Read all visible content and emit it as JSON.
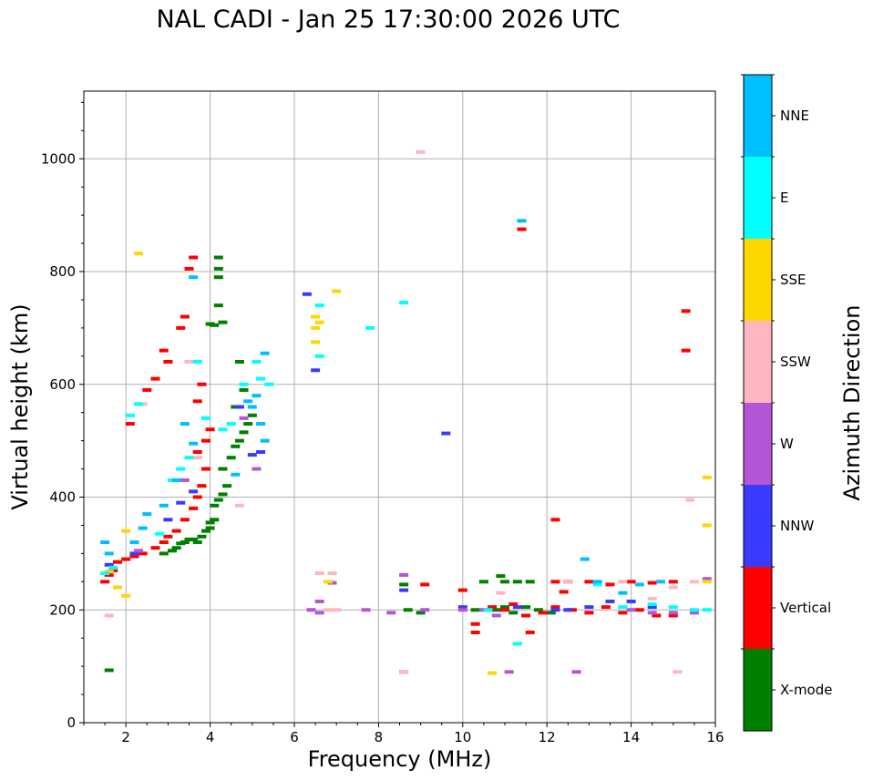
{
  "chart_data": {
    "type": "scatter",
    "title": "NAL CADI - Jan 25 17:30:00 2026 UTC",
    "xlabel": "Frequency (MHz)",
    "ylabel": "Virtual height (km)",
    "xlim": [
      1,
      16
    ],
    "ylim": [
      0,
      1120
    ],
    "xticks": [
      2,
      4,
      6,
      8,
      10,
      12,
      14,
      16
    ],
    "yticks": [
      0,
      200,
      400,
      600,
      800,
      1000
    ],
    "grid": true,
    "colorbar": {
      "label": "Azimuth Direction",
      "categories": [
        "X-mode",
        "Vertical",
        "NNW",
        "W",
        "SSW",
        "SSE",
        "E",
        "NNE"
      ],
      "colors": [
        "#008000",
        "#ff0000",
        "#3a3aff",
        "#b455d6",
        "#ffb6c1",
        "#ffd700",
        "#00ffff",
        "#00bfff"
      ]
    },
    "series": [
      {
        "name": "X-mode",
        "points": [
          [
            1.6,
            93
          ],
          [
            2.9,
            300
          ],
          [
            3.1,
            305
          ],
          [
            3.2,
            310
          ],
          [
            3.3,
            318
          ],
          [
            3.4,
            320
          ],
          [
            3.5,
            325
          ],
          [
            3.6,
            325
          ],
          [
            3.7,
            320
          ],
          [
            3.8,
            330
          ],
          [
            3.9,
            340
          ],
          [
            4.0,
            345
          ],
          [
            4.0,
            355
          ],
          [
            4.1,
            360
          ],
          [
            4.1,
            385
          ],
          [
            4.2,
            395
          ],
          [
            4.3,
            405
          ],
          [
            4.4,
            420
          ],
          [
            4.3,
            450
          ],
          [
            4.5,
            470
          ],
          [
            4.6,
            490
          ],
          [
            4.7,
            500
          ],
          [
            4.8,
            515
          ],
          [
            4.9,
            530
          ],
          [
            5.0,
            545
          ],
          [
            4.6,
            560
          ],
          [
            4.8,
            590
          ],
          [
            4.7,
            640
          ],
          [
            4.3,
            710
          ],
          [
            4.2,
            740
          ],
          [
            4.2,
            790
          ],
          [
            4.2,
            805
          ],
          [
            4.2,
            825
          ],
          [
            4.0,
            707
          ],
          [
            4.1,
            705
          ],
          [
            8.7,
            200
          ],
          [
            9.0,
            195
          ],
          [
            10.3,
            200
          ],
          [
            10.6,
            200
          ],
          [
            10.8,
            200
          ],
          [
            11.0,
            205
          ],
          [
            11.2,
            195
          ],
          [
            11.5,
            205
          ],
          [
            11.8,
            200
          ],
          [
            12.1,
            195
          ],
          [
            10.5,
            250
          ],
          [
            11.0,
            250
          ],
          [
            11.3,
            250
          ],
          [
            11.6,
            250
          ],
          [
            10.9,
            260
          ],
          [
            8.6,
            245
          ]
        ]
      },
      {
        "name": "Vertical",
        "points": [
          [
            1.5,
            250
          ],
          [
            1.6,
            262
          ],
          [
            1.7,
            270
          ],
          [
            1.8,
            285
          ],
          [
            2.0,
            290
          ],
          [
            2.2,
            295
          ],
          [
            2.4,
            300
          ],
          [
            2.7,
            310
          ],
          [
            2.9,
            320
          ],
          [
            3.0,
            330
          ],
          [
            3.2,
            340
          ],
          [
            3.4,
            360
          ],
          [
            3.6,
            380
          ],
          [
            3.7,
            400
          ],
          [
            3.8,
            420
          ],
          [
            3.9,
            450
          ],
          [
            3.7,
            480
          ],
          [
            3.9,
            500
          ],
          [
            4.0,
            520
          ],
          [
            3.7,
            570
          ],
          [
            3.8,
            600
          ],
          [
            3.3,
            700
          ],
          [
            3.4,
            720
          ],
          [
            3.0,
            640
          ],
          [
            2.9,
            660
          ],
          [
            2.7,
            610
          ],
          [
            2.5,
            590
          ],
          [
            2.1,
            530
          ],
          [
            3.5,
            805
          ],
          [
            3.6,
            825
          ],
          [
            9.1,
            245
          ],
          [
            10.0,
            235
          ],
          [
            10.3,
            175
          ],
          [
            10.3,
            160
          ],
          [
            10.7,
            205
          ],
          [
            11.0,
            200
          ],
          [
            11.2,
            210
          ],
          [
            11.5,
            190
          ],
          [
            11.4,
            875
          ],
          [
            11.6,
            160
          ],
          [
            11.9,
            195
          ],
          [
            12.2,
            360
          ],
          [
            12.2,
            250
          ],
          [
            12.5,
            250
          ],
          [
            13.0,
            250
          ],
          [
            13.5,
            245
          ],
          [
            14.0,
            250
          ],
          [
            14.5,
            248
          ],
          [
            15.0,
            250
          ],
          [
            12.2,
            205
          ],
          [
            12.6,
            200
          ],
          [
            13.0,
            195
          ],
          [
            13.4,
            205
          ],
          [
            13.8,
            195
          ],
          [
            14.2,
            200
          ],
          [
            14.6,
            190
          ],
          [
            15.0,
            190
          ],
          [
            12.4,
            232
          ],
          [
            15.3,
            730
          ],
          [
            15.3,
            660
          ]
        ]
      },
      {
        "name": "NNW",
        "points": [
          [
            1.6,
            280
          ],
          [
            2.2,
            300
          ],
          [
            3.0,
            360
          ],
          [
            3.3,
            390
          ],
          [
            3.6,
            410
          ],
          [
            4.7,
            560
          ],
          [
            5.0,
            475
          ],
          [
            5.2,
            480
          ],
          [
            6.3,
            760
          ],
          [
            6.5,
            625
          ],
          [
            8.6,
            235
          ],
          [
            9.6,
            513
          ],
          [
            10.0,
            205
          ],
          [
            11.3,
            205
          ],
          [
            12.5,
            200
          ],
          [
            13.0,
            205
          ],
          [
            13.5,
            215
          ],
          [
            14.0,
            215
          ],
          [
            14.5,
            205
          ],
          [
            12.2,
            200
          ]
        ]
      },
      {
        "name": "W",
        "points": [
          [
            2.3,
            305
          ],
          [
            3.4,
            430
          ],
          [
            4.8,
            540
          ],
          [
            5.1,
            450
          ],
          [
            6.4,
            200
          ],
          [
            6.6,
            195
          ],
          [
            6.6,
            215
          ],
          [
            6.9,
            248
          ],
          [
            7.7,
            200
          ],
          [
            8.3,
            195
          ],
          [
            8.6,
            262
          ],
          [
            8.6,
            90
          ],
          [
            9.1,
            200
          ],
          [
            10.0,
            200
          ],
          [
            10.5,
            200
          ],
          [
            10.8,
            190
          ],
          [
            11.1,
            90
          ],
          [
            12.7,
            90
          ],
          [
            14.0,
            200
          ],
          [
            14.5,
            195
          ],
          [
            15.0,
            195
          ],
          [
            15.5,
            195
          ],
          [
            15.8,
            255
          ]
        ]
      },
      {
        "name": "SSW",
        "points": [
          [
            1.6,
            190
          ],
          [
            2.4,
            565
          ],
          [
            3.5,
            640
          ],
          [
            3.7,
            470
          ],
          [
            4.7,
            385
          ],
          [
            6.6,
            265
          ],
          [
            6.9,
            265
          ],
          [
            6.8,
            200
          ],
          [
            7.0,
            200
          ],
          [
            8.6,
            90
          ],
          [
            9.0,
            1012
          ],
          [
            10.9,
            230
          ],
          [
            12.5,
            250
          ],
          [
            13.8,
            250
          ],
          [
            14.5,
            220
          ],
          [
            15.0,
            240
          ],
          [
            15.1,
            90
          ],
          [
            15.4,
            395
          ],
          [
            15.5,
            250
          ]
        ]
      },
      {
        "name": "SSE",
        "points": [
          [
            1.6,
            268
          ],
          [
            1.8,
            240
          ],
          [
            2.0,
            225
          ],
          [
            2.0,
            340
          ],
          [
            2.3,
            832
          ],
          [
            6.5,
            700
          ],
          [
            6.5,
            720
          ],
          [
            6.6,
            710
          ],
          [
            6.5,
            675
          ],
          [
            6.8,
            250
          ],
          [
            7.0,
            765
          ],
          [
            10.7,
            88
          ],
          [
            15.8,
            350
          ],
          [
            15.8,
            435
          ],
          [
            15.8,
            250
          ]
        ]
      },
      {
        "name": "E",
        "points": [
          [
            1.5,
            265
          ],
          [
            1.7,
            275
          ],
          [
            2.1,
            545
          ],
          [
            2.3,
            565
          ],
          [
            2.8,
            335
          ],
          [
            3.1,
            430
          ],
          [
            3.3,
            450
          ],
          [
            3.5,
            470
          ],
          [
            3.7,
            640
          ],
          [
            3.9,
            540
          ],
          [
            4.3,
            520
          ],
          [
            4.5,
            530
          ],
          [
            4.8,
            600
          ],
          [
            5.1,
            640
          ],
          [
            5.2,
            610
          ],
          [
            5.4,
            600
          ],
          [
            6.6,
            650
          ],
          [
            6.6,
            740
          ],
          [
            7.8,
            700
          ],
          [
            8.6,
            745
          ],
          [
            10.6,
            200
          ],
          [
            11.3,
            140
          ],
          [
            13.2,
            245
          ],
          [
            13.8,
            205
          ],
          [
            14.5,
            210
          ],
          [
            15.0,
            205
          ],
          [
            15.5,
            200
          ],
          [
            15.8,
            200
          ]
        ]
      },
      {
        "name": "NNE",
        "points": [
          [
            1.5,
            320
          ],
          [
            1.6,
            300
          ],
          [
            2.2,
            320
          ],
          [
            2.4,
            345
          ],
          [
            2.5,
            370
          ],
          [
            2.9,
            385
          ],
          [
            3.2,
            430
          ],
          [
            3.6,
            495
          ],
          [
            3.4,
            530
          ],
          [
            3.6,
            790
          ],
          [
            4.6,
            440
          ],
          [
            4.9,
            570
          ],
          [
            5.0,
            560
          ],
          [
            5.1,
            580
          ],
          [
            5.2,
            530
          ],
          [
            5.3,
            500
          ],
          [
            5.3,
            655
          ],
          [
            11.4,
            890
          ],
          [
            12.9,
            290
          ],
          [
            13.2,
            250
          ],
          [
            13.8,
            230
          ],
          [
            14.2,
            245
          ],
          [
            14.7,
            250
          ]
        ]
      }
    ]
  }
}
